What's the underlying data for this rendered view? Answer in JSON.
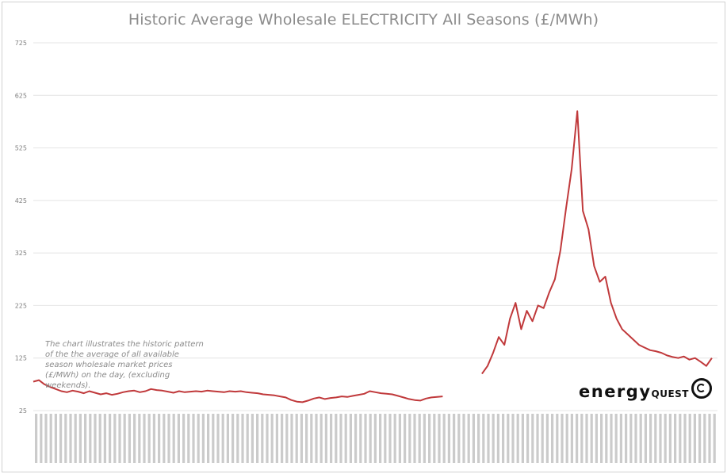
{
  "chart_data": {
    "type": "line",
    "title": "Historic Average Wholesale ELECTRICITY All Seasons (£/MWh)",
    "xlabel": "",
    "ylabel": "",
    "ylim": [
      25,
      725
    ],
    "yticks": [
      "725",
      "625",
      "525",
      "425",
      "325",
      "225",
      "125",
      "25"
    ],
    "ytick_values": [
      725,
      625,
      525,
      425,
      325,
      225,
      125,
      25
    ],
    "grid": "horizontal",
    "legend": "none",
    "series": [
      {
        "color": "#c0393b",
        "points": [
          [
            0,
            80
          ],
          [
            1,
            83
          ],
          [
            2,
            75
          ],
          [
            3,
            70
          ],
          [
            4,
            66
          ],
          [
            5,
            62
          ],
          [
            6,
            60
          ],
          [
            7,
            63
          ],
          [
            8,
            61
          ],
          [
            9,
            58
          ],
          [
            10,
            62
          ],
          [
            11,
            59
          ],
          [
            12,
            56
          ],
          [
            13,
            58
          ],
          [
            14,
            55
          ],
          [
            15,
            57
          ],
          [
            16,
            60
          ],
          [
            17,
            62
          ],
          [
            18,
            63
          ],
          [
            19,
            60
          ],
          [
            20,
            62
          ],
          [
            21,
            66
          ],
          [
            22,
            64
          ],
          [
            23,
            63
          ],
          [
            24,
            61
          ],
          [
            25,
            59
          ],
          [
            26,
            62
          ],
          [
            27,
            60
          ],
          [
            28,
            61
          ],
          [
            29,
            62
          ],
          [
            30,
            61
          ],
          [
            31,
            63
          ],
          [
            32,
            62
          ],
          [
            33,
            61
          ],
          [
            34,
            60
          ],
          [
            35,
            62
          ],
          [
            36,
            61
          ],
          [
            37,
            62
          ],
          [
            38,
            60
          ],
          [
            39,
            59
          ],
          [
            40,
            58
          ],
          [
            41,
            56
          ],
          [
            42,
            55
          ],
          [
            43,
            54
          ],
          [
            44,
            52
          ],
          [
            45,
            50
          ],
          [
            46,
            45
          ],
          [
            47,
            42
          ],
          [
            48,
            41
          ],
          [
            49,
            44
          ],
          [
            50,
            48
          ],
          [
            51,
            50
          ],
          [
            52,
            47
          ],
          [
            53,
            49
          ],
          [
            54,
            50
          ],
          [
            55,
            52
          ],
          [
            56,
            51
          ],
          [
            57,
            53
          ],
          [
            58,
            55
          ],
          [
            59,
            57
          ],
          [
            60,
            62
          ],
          [
            61,
            60
          ],
          [
            62,
            58
          ],
          [
            63,
            57
          ],
          [
            64,
            56
          ],
          [
            65,
            53
          ],
          [
            66,
            50
          ],
          [
            67,
            47
          ],
          [
            68,
            45
          ],
          [
            69,
            44
          ],
          [
            70,
            48
          ],
          [
            71,
            50
          ],
          [
            72,
            51
          ],
          [
            73,
            52
          ]
        ]
      },
      {
        "color": "#c0393b",
        "points": [
          [
            80,
            95
          ],
          [
            81,
            110
          ],
          [
            82,
            135
          ],
          [
            83,
            165
          ],
          [
            84,
            150
          ],
          [
            85,
            200
          ],
          [
            86,
            230
          ],
          [
            87,
            180
          ],
          [
            88,
            215
          ],
          [
            89,
            195
          ],
          [
            90,
            225
          ],
          [
            91,
            220
          ],
          [
            92,
            250
          ],
          [
            93,
            275
          ],
          [
            94,
            330
          ],
          [
            95,
            410
          ],
          [
            96,
            485
          ],
          [
            97,
            595
          ],
          [
            98,
            405
          ],
          [
            99,
            370
          ],
          [
            100,
            300
          ],
          [
            101,
            270
          ],
          [
            102,
            280
          ],
          [
            103,
            230
          ],
          [
            104,
            200
          ],
          [
            105,
            180
          ],
          [
            106,
            170
          ],
          [
            107,
            160
          ],
          [
            108,
            150
          ],
          [
            109,
            145
          ],
          [
            110,
            140
          ],
          [
            111,
            138
          ],
          [
            112,
            135
          ],
          [
            113,
            130
          ],
          [
            114,
            127
          ],
          [
            115,
            125
          ],
          [
            116,
            128
          ],
          [
            117,
            122
          ],
          [
            118,
            125
          ],
          [
            119,
            118
          ],
          [
            120,
            110
          ],
          [
            121,
            125
          ]
        ]
      }
    ]
  },
  "annotation": "The chart illustrates the historic pattern of the the average of all available season wholesale market prices (£/MWh) on the day, (excluding weekends).",
  "logo": {
    "word": "energy",
    "sub": "QUEST"
  }
}
